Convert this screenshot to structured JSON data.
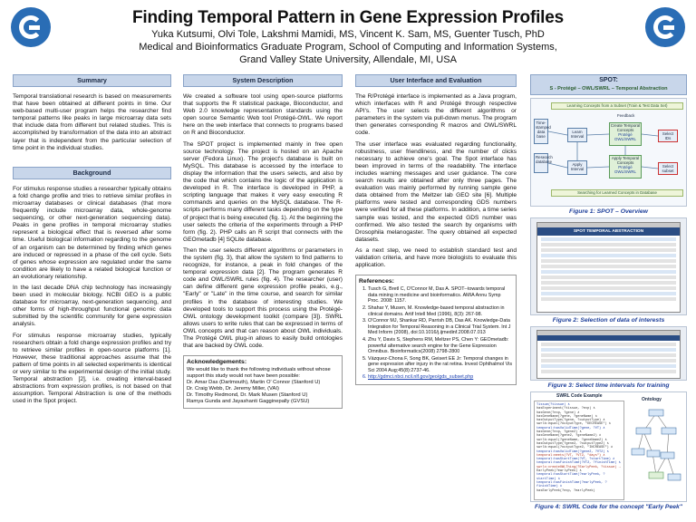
{
  "header": {
    "title": "Finding Temporal Pattern in Gene Expression Profiles",
    "authors": "Yuka Kutsumi, Olvi Tole, Lakshmi Mamidi, MS, Vincent K. Sam, MS, Guenter Tusch, PhD",
    "affiliation1": "Medical and Bioinformatics Graduate Program, School of Computing and Information Systems,",
    "affiliation2": "Grand Valley State University, Allendale, MI, USA"
  },
  "summary": {
    "heading": "Summary",
    "text": "Temporal translational research is based on measurements that have been obtained at different points in time. Our web-based multi-user program helps the researcher find temporal patterns like peaks in large microarray data sets that include data from different but related studies. This is accomplished by transformation of the data into an abstract layer that is independent from the particular selection of time point in the individual studies."
  },
  "background": {
    "heading": "Background",
    "p1": "For stimulus response studies a researcher typically obtains a fold change profile and tries to retrieve similar profiles in microarray databases or clinical databases (that more frequently include microarray data, whole-genome sequencing, or other next-generation sequencing data). Peaks in gene profiles in temporal microarray studies represent a biological effect that is reversed after some time. Useful biological information regarding to the genome of an organism can be determined by finding which genes are induced or repressed in a phase of the cell cycle. Sets of genes whose expression are regulated under the same condition are likely to have a related biological function or an evolutionary relationship.",
    "p2": "In the last decade DNA chip technology has increasingly been used in molecular biology. NCBI GEO is a public database for microarray, next-generation sequencing, and other forms of high-throughput functional genomic data submitted by the scientific community for gene expression analysis.",
    "p3": "For stimulus response microarray studies, typically researchers obtain a fold change expression profiles and try to retrieve similar profiles in open-source platforms [1]. However, these traditional approaches assume that the pattern of time points in all selected experiments is identical or very similar to the experimental design of the initial study. Temporal abstraction [2], i.e. creating interval-based abstractions from expression profiles, is not based on that assumption. Temporal Abstraction is one of the methods used in the Spot project."
  },
  "system": {
    "heading": "System Description",
    "p1": "We created a software tool using open-source platforms that supports the R statistical package, Bioconductor, and Web 2.0 knowledge representation standards using the open source Semantic Web tool Protégé-OWL. We report here on the web interface that connects to programs based on R and Bioconductor.",
    "p2": "The SPOT project is implemented mainly in free open source technology. The project is hosted on an Apache server (Fedora Linux). The project's database is built on MySQL. This database is accessed by the interface to display the information that the users selects, and also by the code that which contains the logic of the application is developed in R. The interface is developed in PHP, a scripting language that makes it very easy executing R commands and queries on the MySQL database. The R-scripts performs many different tasks depending on the type of project that is being executed (fig. 1). At the beginning the user selects the criteria of the experiments through a PHP form (fig. 2). PHP calls an R script that connects with the GEOmetadb [4] SQLite database.",
    "p3": "Then the user selects different algorithms or parameters in the system (fig. 3), that allow the system to find patterns to recognize, for instance, a peak in fold changes of the temporal expression data [2]. The program generates R code and OWL/SWRL rules (fig. 4). The researcher (user) can define different gene expression profile peaks, e.g., \"Early\" or \"Late\" in the time course, and search for similar profiles in the database of interesting studies. We developed tools to support this process using the Protégé-OWL ontology development toolkit (compare [3]). SWRL allows users to write rules that can be expressed in terms of OWL concepts and that can reason about OWL individuals. The Protégé OWL plug-in allows to easily build ontologies that are backed by OWL code."
  },
  "acknowledgements": {
    "heading": "Acknowledgements:",
    "intro": "We would like to thank the following individuals without whose support this study would not have been possible:",
    "line1": "Dr. Amar Das (Dartmouth), Martin O' Connor (Stanford U)",
    "line2": "Dr. Craig Webb, Dr. Jeremy Miller, (VAI)",
    "line3": "Dr. Timothy Redmond, Dr. Mark Musen (Stanford U)",
    "line4": "Ramya Gunda and Jayashanti Gagginepally (GVSU)"
  },
  "evaluation": {
    "heading": "User Interface and Evaluation",
    "p1": "The R/Protégé interface is implemented as a Java program, which interfaces with R and Protégé through respective API's. The user selects the different algorithms or parameters in the system via pull-down menus. The program then generates corresponding R macros and OWL/SWRL code.",
    "p2": "The user interface was evaluated regarding functionality, robustness, user friendliness, and the number of clicks necessary to achieve one's goal. The Spot interface has been improved in terms of the readability. The interface includes warning messages and user guidance. The core search results are obtained after only three pages. The evaluation was mainly performed by running sample gene data obtained from the Meltzer lab GEO site [6]. Multiple platforms were tested and corresponding GDS numbers were verified for all these platforms. In addition, a time series sample was tested, and the expected GDS number was confirmed. We also tested the search by organisms with Drosophila melanogaster. The query obtained all expected datasets.",
    "p3": "As a next step, we need to establish standard test and validation criteria, and have more biologists to evaluate this application."
  },
  "references": {
    "heading": "References:",
    "items": [
      "Tusch G, Bretl C, O'Connor M, Das A. SPOT--towards temporal data mining in medicine and bioinformatics. AMIA Annu Symp Proc. 2008: 1157.",
      "Shahar Y, Musen, M. Knowledge-based temporal abstraction in clinical domains. Artif Intell Med (1996), 8(3): 267-98.",
      "O'Connor MJ, Shankar RD, Parrish DB, Das AK. Knowledge-Data Integration for Temporal Reasoning in a Clinical Trial System. Int J Med Inform (2008), doi:10.1016/j.ijmedinf.2008.07.013",
      "Zhu Y, Davis S, Stephens RM, Meltzer PS, Chen Y: GEOmetadb: powerful alternative search engine for the Gene Expression Omnibus. Bioinformatics(2008) 2798-2800",
      "Vázquez-Chona F, Song BK, Geisert EE Jr: Temporal changes in gene expression after injury in the rat retina. Invest Ophthalmol Vis Sci 2004 Aug;45(8):2737-46.",
      "http://gdmci.nbci.ncil.nlf.gov/geo/gds_subset.php"
    ]
  },
  "spot": {
    "heading": "SPOT:",
    "subtitle": "S - Protégé – OWL/SWRL – Temporal Abstraction",
    "fig1_caption": "Figure 1: SPOT – Overview",
    "fig1_top_band": "Learning Concepts from a Subset (Train & Test Data Set)",
    "fig1_bottom_band": "Searching for Learned Concepts in Database",
    "fig1_boxes": [
      "Time-stamped data base",
      "Learn Interval",
      "Create Temporal Concepts",
      "Select IDs",
      "Research database",
      "Apply Interval",
      "Apply Temporal Concepts",
      "Select subset"
    ],
    "fig1_labels": [
      "Feedback",
      "Protégé OWL/SWRL",
      "Protégé OWL/SWRL"
    ],
    "fig2_title": "SPOT TEMPORAL ABSTRACTION",
    "fig2_caption": "Figure 2: Selection of data of interests",
    "fig3_caption": "Figure 3: Select time intervals for training",
    "fig4_code_label": "SWRL Code Example",
    "fig4_ontology_label": "Ontology",
    "fig4_caption": "Figure 4: SWRL Code for the concept \"Early Peek\"",
    "fig4_code_lines": [
      "Tissue(?tissue) ∧",
      "hasExperiment(?tissue, ?exp) ∧",
      "hasGene(?exp, ?gene) ∧",
      "hasGeneName(?gene, ?geneName) ∧",
      "hasOutputType(?gene, ?outputType) ∧",
      "swrlb:equal(?outputType, \"DECREASE\") ∧",
      "temporal:hasValidTime(?gene, ?VT) ∧",
      "hasGene(?exp, ?gene2) ∧",
      "hasGeneName(?gene2, ?geneName2) ∧",
      "swrlb:equal(?geneName, ?geneName2) ∧",
      "hasOutputType(?gene2, ?outputType2) ∧",
      "swrlb:equal(?outputType2, \"INCREASE\") ∧",
      "temporal:hasValidTime(?gene2, ?VT2) ∧",
      "temporal:meets(?VT, ?VT2, \"days\") ∧",
      "temporal:hasStartTime(?VT, ?startTime) ∧",
      "temporal:hasFinishTime(?VT2, ?finishTime) ∧",
      "swrlx:createOWLThing(?EarlyPeek, ?tissue) →",
      "EarlyPeek(?earlyPeek) ∧",
      "temporal:hasStartTime(?earlyPeek, ?startTime) ∧",
      "temporal:hasFinishTime(?earlyPeek, ?finishTime) ∧",
      "hasEarlyPeek(?exp, ?earlyPeek)"
    ]
  }
}
